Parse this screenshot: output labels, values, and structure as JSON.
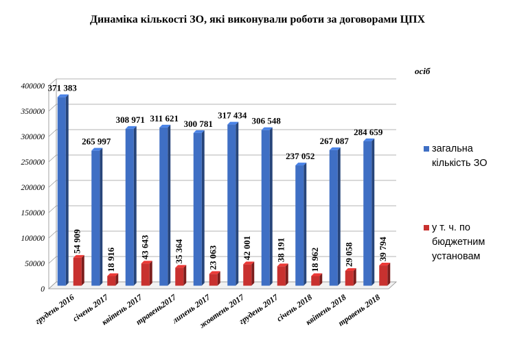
{
  "chart_data": {
    "type": "bar",
    "title": "Динаміка кількості ЗО, які виконували роботи за договорами ЦПХ",
    "unit": "осіб",
    "categories": [
      "грудень 2016",
      "січень 2017",
      "квітень 2017",
      "травень2017",
      "липень 2017",
      "жовтень 2017",
      "грудень 2017",
      "січень 2018",
      "квітень 2018",
      "травень 2018"
    ],
    "ylim": [
      0,
      400000
    ],
    "yticks": [
      "0",
      "50000",
      "100000",
      "150000",
      "200000",
      "250000",
      "300000",
      "350000",
      "400000"
    ],
    "grid": true,
    "legend_position": "right",
    "series": [
      {
        "name": "загальна кількість ЗО",
        "color": "#3f6fc4",
        "values": [
          371383,
          265997,
          308971,
          311621,
          300781,
          317434,
          306548,
          237052,
          267087,
          284659
        ],
        "labels": [
          "371 383",
          "265 997",
          "308 971",
          "311 621",
          "300 781",
          "317 434",
          "306 548",
          "237 052",
          "267 087",
          "284 659"
        ]
      },
      {
        "name": "у т. ч. по бюджетним установам",
        "color": "#c8312f",
        "values": [
          54909,
          18916,
          43643,
          35364,
          23063,
          42001,
          38191,
          18962,
          29058,
          39794
        ],
        "labels": [
          "54 909",
          "18 916",
          "43 643",
          "35 364",
          "23 063",
          "42 001",
          "38 191",
          "18 962",
          "29 058",
          "39 794"
        ]
      }
    ]
  }
}
